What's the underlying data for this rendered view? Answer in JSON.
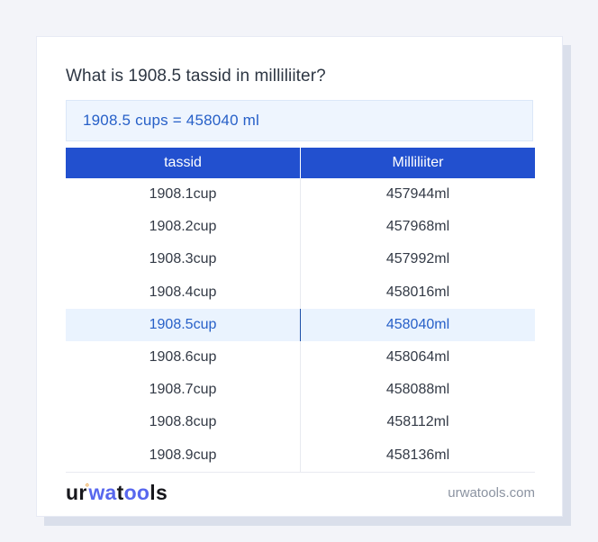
{
  "page": {
    "title": "What is 1908.5 tassid in milliliiter?",
    "result": "1908.5 cups = 458040 ml"
  },
  "table": {
    "headers": [
      "tassid",
      "Milliliiter"
    ],
    "highlighted_index": 4,
    "rows": [
      {
        "cup": "1908.1cup",
        "ml": "457944ml"
      },
      {
        "cup": "1908.2cup",
        "ml": "457968ml"
      },
      {
        "cup": "1908.3cup",
        "ml": "457992ml"
      },
      {
        "cup": "1908.4cup",
        "ml": "458016ml"
      },
      {
        "cup": "1908.5cup",
        "ml": "458040ml"
      },
      {
        "cup": "1908.6cup",
        "ml": "458064ml"
      },
      {
        "cup": "1908.7cup",
        "ml": "458088ml"
      },
      {
        "cup": "1908.8cup",
        "ml": "458112ml"
      },
      {
        "cup": "1908.9cup",
        "ml": "458136ml"
      }
    ]
  },
  "footer": {
    "logo_parts": {
      "p1": "ur",
      "ring": "°",
      "p2": "wa",
      "p3": "t",
      "p4": "oo",
      "p5": "ls"
    },
    "site": "urwatools.com"
  },
  "colors": {
    "page_bg": "#f3f4f9",
    "header_blue": "#2250cf",
    "accent_blue": "#2760c8",
    "result_bg": "#eef5fe",
    "highlight_bg": "#eaf3fe",
    "highlight_divider": "#1d4fa8",
    "logo_blue": "#5867ee",
    "logo_accent": "#f0a13c",
    "shadow": "#dadfeb"
  }
}
